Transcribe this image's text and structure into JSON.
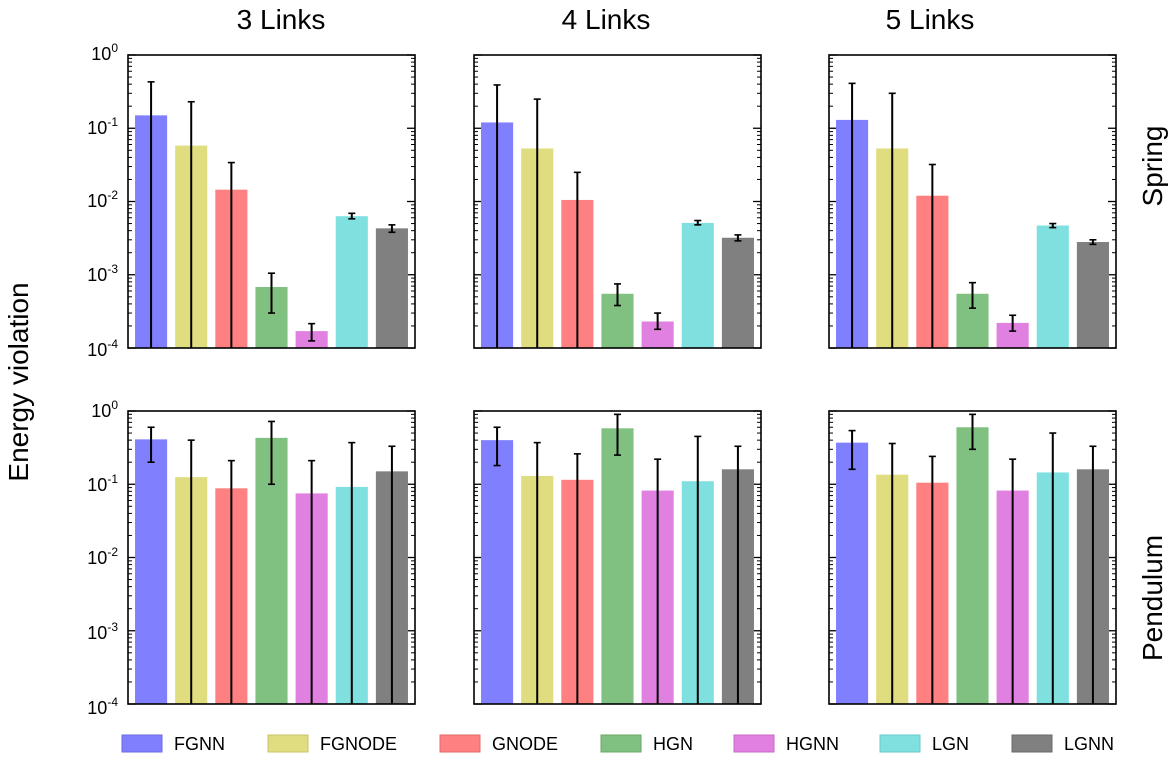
{
  "chart_data": {
    "type": "bar",
    "figure_ylabel": "Energy violation",
    "yscale": "log",
    "ylim": [
      0.0001,
      1
    ],
    "ytick_labels": [
      {
        "base": "10",
        "exp": "0"
      },
      {
        "base": "10",
        "exp": "-1"
      },
      {
        "base": "10",
        "exp": "-2"
      },
      {
        "base": "10",
        "exp": "-3"
      },
      {
        "base": "10",
        "exp": "-4"
      }
    ],
    "column_titles": [
      "3 Links",
      "4 Links",
      "5 Links"
    ],
    "row_titles": [
      "Spring",
      "Pendulum"
    ],
    "categories": [
      "FGNN",
      "FGNODE",
      "GNODE",
      "HGN",
      "HGNN",
      "LGN",
      "LGNN"
    ],
    "colors": [
      "#8080ff",
      "#e0dc80",
      "#ff8080",
      "#80c080",
      "#e080e0",
      "#80e0e0",
      "#808080"
    ],
    "panels": [
      {
        "row": "Spring",
        "column": "3 Links",
        "values": [
          0.15,
          0.058,
          0.0145,
          0.00068,
          0.00017,
          0.0063,
          0.0043
        ],
        "err_low": [
          0.0001,
          0.0001,
          0.0001,
          0.0003,
          0.000125,
          0.0058,
          0.0038
        ],
        "err_high": [
          0.43,
          0.23,
          0.034,
          0.00105,
          0.000215,
          0.0069,
          0.0048
        ]
      },
      {
        "row": "Spring",
        "column": "4 Links",
        "values": [
          0.12,
          0.053,
          0.0105,
          0.00055,
          0.00023,
          0.0051,
          0.0032
        ],
        "err_low": [
          0.0001,
          0.0001,
          0.0001,
          0.00038,
          0.00018,
          0.0048,
          0.0029
        ],
        "err_high": [
          0.39,
          0.25,
          0.025,
          0.00075,
          0.0003,
          0.0055,
          0.0035
        ]
      },
      {
        "row": "Spring",
        "column": "5 Links",
        "values": [
          0.13,
          0.053,
          0.012,
          0.00055,
          0.00022,
          0.0047,
          0.0028
        ],
        "err_low": [
          0.0001,
          0.0001,
          0.0001,
          0.00035,
          0.00017,
          0.0044,
          0.0026
        ],
        "err_high": [
          0.41,
          0.3,
          0.032,
          0.00078,
          0.00028,
          0.005,
          0.003
        ]
      },
      {
        "row": "Pendulum",
        "column": "3 Links",
        "values": [
          0.41,
          0.125,
          0.088,
          0.43,
          0.075,
          0.092,
          0.15
        ],
        "err_low": [
          0.2,
          0.0001,
          0.0001,
          0.1,
          0.0001,
          0.0001,
          0.0001
        ],
        "err_high": [
          0.6,
          0.4,
          0.21,
          0.72,
          0.21,
          0.37,
          0.33
        ]
      },
      {
        "row": "Pendulum",
        "column": "4 Links",
        "values": [
          0.4,
          0.13,
          0.115,
          0.58,
          0.082,
          0.11,
          0.16
        ],
        "err_low": [
          0.18,
          0.0001,
          0.0001,
          0.25,
          0.0001,
          0.0001,
          0.0001
        ],
        "err_high": [
          0.6,
          0.37,
          0.26,
          0.9,
          0.22,
          0.45,
          0.33
        ]
      },
      {
        "row": "Pendulum",
        "column": "5 Links",
        "values": [
          0.37,
          0.135,
          0.105,
          0.6,
          0.082,
          0.145,
          0.16
        ],
        "err_low": [
          0.16,
          0.0001,
          0.0001,
          0.3,
          0.0001,
          0.0001,
          0.0001
        ],
        "err_high": [
          0.54,
          0.36,
          0.24,
          0.9,
          0.22,
          0.5,
          0.33
        ]
      }
    ],
    "legend": {
      "placement": "bottom",
      "entries": [
        "FGNN",
        "FGNODE",
        "GNODE",
        "HGN",
        "HGNN",
        "LGN",
        "LGNN"
      ]
    }
  }
}
